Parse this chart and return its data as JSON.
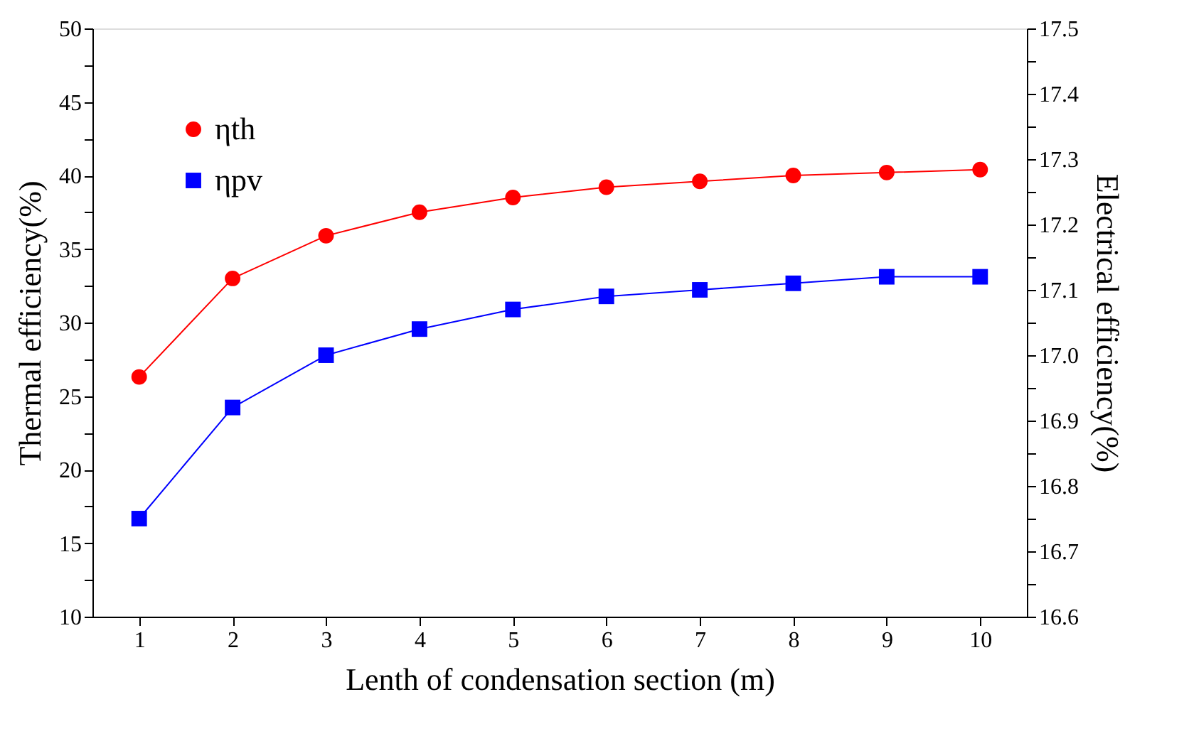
{
  "chart_data": {
    "type": "line",
    "xlabel": "Lenth of condensation section (m)",
    "ylabel": "Thermal efficiency(%)",
    "y2label": "Electrical efficiency(%)",
    "x": [
      1,
      2,
      3,
      4,
      5,
      6,
      7,
      8,
      9,
      10
    ],
    "series": [
      {
        "name": "ηth",
        "color": "#ff0000",
        "marker": "circle",
        "values": [
          26.3,
          33.0,
          35.9,
          37.5,
          38.5,
          39.2,
          39.6,
          40.0,
          40.2,
          40.4
        ]
      },
      {
        "name": "ηpv",
        "color": "#0000ff",
        "marker": "square",
        "axis": "y2",
        "values": [
          16.75,
          16.92,
          17.0,
          17.04,
          17.07,
          17.09,
          17.1,
          17.11,
          17.12,
          17.12
        ]
      }
    ],
    "xlim": [
      0.5,
      10.5
    ],
    "xticks": [
      1,
      2,
      3,
      4,
      5,
      6,
      7,
      8,
      9,
      10
    ],
    "ylim": [
      10,
      50
    ],
    "yticks": [
      10,
      {
        "value": 12.5,
        "label": null
      },
      15,
      {
        "value": 17.5,
        "label": null
      },
      20,
      {
        "value": 22.5,
        "label": null
      },
      25,
      {
        "value": 27.5,
        "label": null
      },
      30,
      {
        "value": 32.5,
        "label": null
      },
      35,
      {
        "value": 37.5,
        "label": null
      },
      40,
      {
        "value": 42.5,
        "label": null
      },
      45,
      {
        "value": 47.5,
        "label": null
      },
      50
    ],
    "y2lim": [
      16.6,
      17.5
    ],
    "y2ticks": [
      {
        "value": 16.6,
        "label": "16.6"
      },
      {
        "value": 16.65,
        "label": null
      },
      {
        "value": 16.7,
        "label": "16.7"
      },
      {
        "value": 16.75,
        "label": null
      },
      {
        "value": 16.8,
        "label": "16.8"
      },
      {
        "value": 16.85,
        "label": null
      },
      {
        "value": 16.9,
        "label": "16.9"
      },
      {
        "value": 16.95,
        "label": null
      },
      {
        "value": 17.0,
        "label": "17.0"
      },
      {
        "value": 17.05,
        "label": null
      },
      {
        "value": 17.1,
        "label": "17.1"
      },
      {
        "value": 17.15,
        "label": null
      },
      {
        "value": 17.2,
        "label": "17.2"
      },
      {
        "value": 17.25,
        "label": null
      },
      {
        "value": 17.3,
        "label": "17.3"
      },
      {
        "value": 17.35,
        "label": null
      },
      {
        "value": 17.4,
        "label": "17.4"
      },
      {
        "value": 17.45,
        "label": null
      },
      {
        "value": 17.5,
        "label": "17.5"
      }
    ],
    "grid": false,
    "legend": "top left",
    "line_style": "solid"
  }
}
